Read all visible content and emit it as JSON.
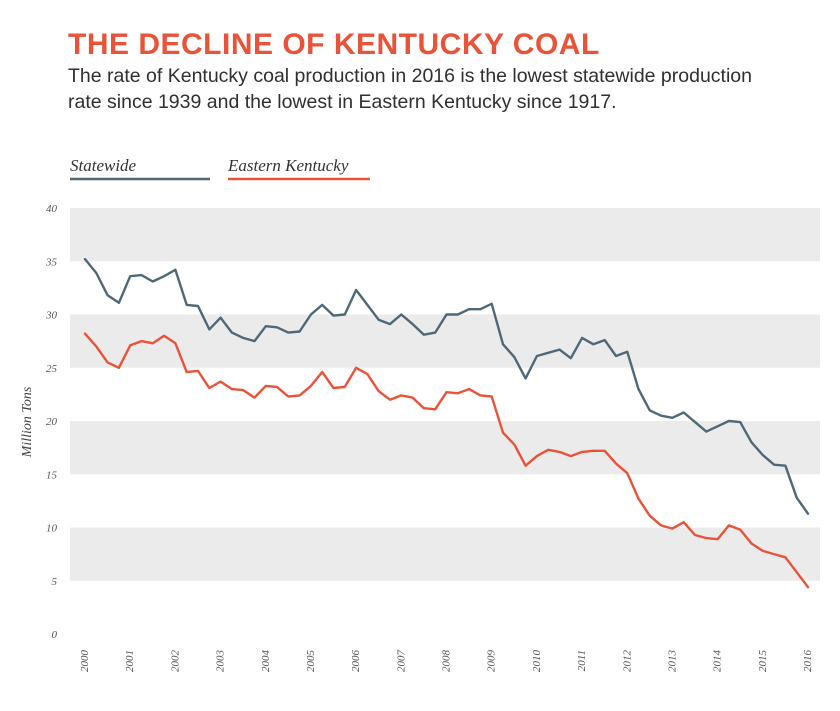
{
  "title": "THE DECLINE OF KENTUCKY COAL",
  "subtitle": "The rate of Kentucky coal production in 2016 is the lowest statewide production rate since 1939 and the lowest in Eastern Kentucky since 1917.",
  "colors": {
    "title": "#e8533a",
    "statewide": "#4f6877",
    "eastern": "#e8533a",
    "band": "#ebebeb"
  },
  "chart_data": {
    "type": "line",
    "title": "THE DECLINE OF KENTUCKY COAL",
    "xlabel": "",
    "ylabel": "Million Tons",
    "ylim": [
      0,
      40
    ],
    "yticks": [
      "0",
      "5",
      "10",
      "15",
      "20",
      "25",
      "30",
      "35",
      "40"
    ],
    "xlim": [
      2000,
      2016
    ],
    "xticks": [
      "2000",
      "2001",
      "2002",
      "2003",
      "2004",
      "2005",
      "2006",
      "2007",
      "2008",
      "2009",
      "2010",
      "2011",
      "2012",
      "2013",
      "2014",
      "2015",
      "2016"
    ],
    "legend_position": "top-left",
    "series": [
      {
        "name": "Statewide",
        "color": "#4f6877",
        "x": [
          2000,
          2000.25,
          2000.5,
          2000.75,
          2001,
          2001.25,
          2001.5,
          2001.75,
          2002,
          2002.25,
          2002.5,
          2002.75,
          2003,
          2003.25,
          2003.5,
          2003.75,
          2004,
          2004.25,
          2004.5,
          2004.75,
          2005,
          2005.25,
          2005.5,
          2005.75,
          2006,
          2006.25,
          2006.5,
          2006.75,
          2007,
          2007.25,
          2007.5,
          2007.75,
          2008,
          2008.25,
          2008.5,
          2008.75,
          2009,
          2009.25,
          2009.5,
          2009.75,
          2010,
          2010.25,
          2010.5,
          2010.75,
          2011,
          2011.25,
          2011.5,
          2011.75,
          2012,
          2012.25,
          2012.5,
          2012.75,
          2013,
          2013.25,
          2013.5,
          2013.75,
          2014,
          2014.25,
          2014.5,
          2014.75,
          2015,
          2015.25,
          2015.5,
          2015.75,
          2016
        ],
        "values": [
          35.2,
          33.9,
          31.8,
          31.1,
          33.6,
          33.7,
          33.1,
          33.6,
          34.2,
          30.9,
          30.8,
          28.6,
          29.7,
          28.3,
          27.8,
          27.5,
          28.9,
          28.8,
          28.3,
          28.4,
          30.0,
          30.9,
          29.9,
          30.0,
          32.3,
          30.9,
          29.5,
          29.1,
          30.0,
          29.1,
          28.1,
          28.3,
          30.0,
          30.0,
          30.5,
          30.5,
          31.0,
          27.2,
          26.0,
          24.0,
          26.1,
          26.4,
          26.7,
          25.9,
          27.8,
          27.2,
          27.6,
          26.1,
          26.5,
          23.0,
          21.0,
          20.5,
          20.3,
          20.8,
          19.9,
          19.0,
          19.5,
          20.0,
          19.9,
          18.0,
          16.8,
          15.9,
          15.8,
          12.8,
          11.3
        ]
      },
      {
        "name": "Eastern Kentucky",
        "color": "#e8533a",
        "x": [
          2000,
          2000.25,
          2000.5,
          2000.75,
          2001,
          2001.25,
          2001.5,
          2001.75,
          2002,
          2002.25,
          2002.5,
          2002.75,
          2003,
          2003.25,
          2003.5,
          2003.75,
          2004,
          2004.25,
          2004.5,
          2004.75,
          2005,
          2005.25,
          2005.5,
          2005.75,
          2006,
          2006.25,
          2006.5,
          2006.75,
          2007,
          2007.25,
          2007.5,
          2007.75,
          2008,
          2008.25,
          2008.5,
          2008.75,
          2009,
          2009.25,
          2009.5,
          2009.75,
          2010,
          2010.25,
          2010.5,
          2010.75,
          2011,
          2011.25,
          2011.5,
          2011.75,
          2012,
          2012.25,
          2012.5,
          2012.75,
          2013,
          2013.25,
          2013.5,
          2013.75,
          2014,
          2014.25,
          2014.5,
          2014.75,
          2015,
          2015.25,
          2015.5,
          2015.75,
          2016
        ],
        "values": [
          28.2,
          27.0,
          25.5,
          25.0,
          27.1,
          27.5,
          27.3,
          28.0,
          27.3,
          24.6,
          24.7,
          23.1,
          23.7,
          23.0,
          22.9,
          22.2,
          23.3,
          23.2,
          22.3,
          22.4,
          23.3,
          24.6,
          23.1,
          23.2,
          25.0,
          24.4,
          22.8,
          22.0,
          22.4,
          22.2,
          21.2,
          21.1,
          22.7,
          22.6,
          23.0,
          22.4,
          22.3,
          18.9,
          17.8,
          15.8,
          16.7,
          17.3,
          17.1,
          16.7,
          17.1,
          17.2,
          17.2,
          16.0,
          15.1,
          12.7,
          11.1,
          10.2,
          9.9,
          10.5,
          9.3,
          9.0,
          8.9,
          10.2,
          9.8,
          8.5,
          7.8,
          7.5,
          7.2,
          5.8,
          4.4
        ]
      }
    ]
  }
}
